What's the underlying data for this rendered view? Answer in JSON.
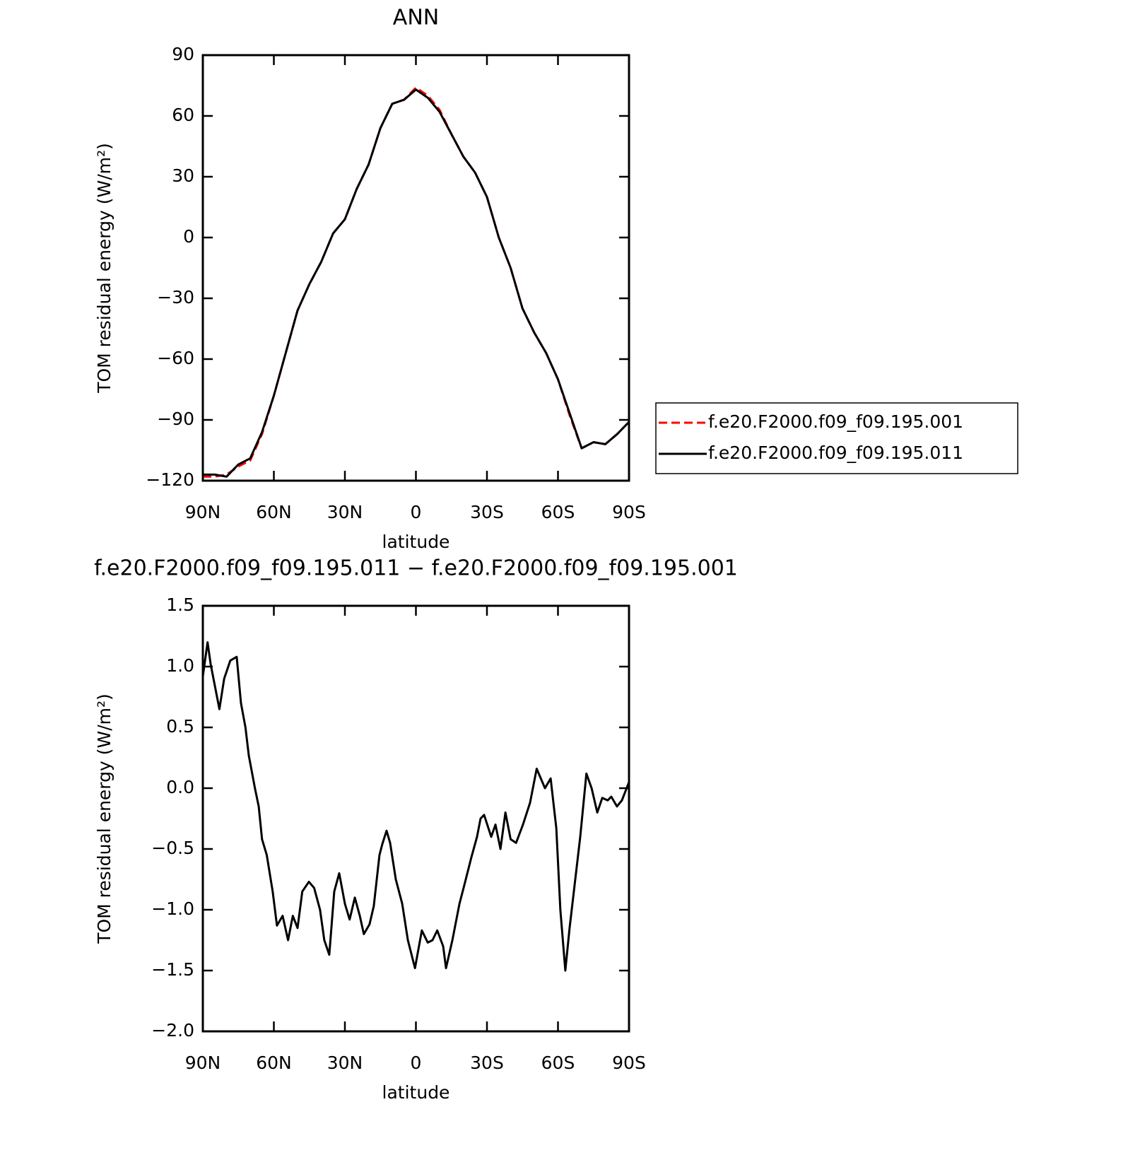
{
  "chart_data": [
    {
      "type": "line",
      "title": "ANN",
      "xlabel": "latitude",
      "ylabel": "TOM residual energy (W/m²)",
      "x": [
        90,
        85,
        80,
        75,
        70,
        65,
        60,
        55,
        50,
        45,
        40,
        35,
        30,
        25,
        20,
        15,
        10,
        5,
        0,
        -5,
        -10,
        -15,
        -20,
        -25,
        -30,
        -35,
        -40,
        -45,
        -50,
        -55,
        -60,
        -65,
        -70,
        -75,
        -80,
        -85,
        -90
      ],
      "series": [
        {
          "name": "f.e20.F2000.f09_f09.195.001",
          "color": "#ff0000",
          "linestyle": "dashed",
          "values": [
            -118,
            -118,
            -117,
            -113,
            -110,
            -97,
            -78,
            -57,
            -36,
            -23,
            -12,
            2,
            9,
            24,
            36,
            54,
            66,
            68,
            74,
            70,
            63,
            51,
            40,
            32,
            20,
            0,
            -15,
            -35,
            -47,
            -57,
            -70,
            -88,
            -104,
            -101,
            -102,
            -97,
            -91
          ]
        },
        {
          "name": "f.e20.F2000.f09_f09.195.011",
          "color": "#000000",
          "linestyle": "solid",
          "values": [
            -117,
            -117,
            -118,
            -112,
            -109,
            -96,
            -78,
            -57,
            -36,
            -23,
            -12,
            2,
            9,
            24,
            36,
            54,
            66,
            68,
            73,
            69,
            62,
            51,
            40,
            32,
            20,
            0,
            -15,
            -35,
            -47,
            -57,
            -70,
            -87,
            -104,
            -101,
            -102,
            -97,
            -91
          ]
        }
      ],
      "xlim": [
        90,
        -90
      ],
      "xticks": [
        {
          "value": 90,
          "label": "90N"
        },
        {
          "value": 60,
          "label": "60N"
        },
        {
          "value": 30,
          "label": "30N"
        },
        0,
        {
          "value": -30,
          "label": "30S"
        },
        {
          "value": -60,
          "label": "60S"
        },
        {
          "value": -90,
          "label": "90S"
        }
      ],
      "ylim": [
        -120,
        90
      ],
      "yticks": [
        90,
        60,
        30,
        0,
        {
          "value": -30,
          "label": "−30"
        },
        {
          "value": -60,
          "label": "−60"
        },
        {
          "value": -90,
          "label": "−90"
        },
        {
          "value": -120,
          "label": "−120"
        }
      ],
      "legend": "right"
    },
    {
      "type": "line",
      "title": "f.e20.F2000.f09_f09.195.011 − f.e20.F2000.f09_f09.195.001",
      "xlabel": "latitude",
      "ylabel": "TOM residual energy (W/m²)",
      "x": [
        90,
        88,
        86.7,
        85,
        83,
        81,
        78.4,
        75.7,
        73.9,
        72,
        70.6,
        68,
        66.4,
        65,
        63,
        60.5,
        58.7,
        56.3,
        54,
        52,
        50,
        48,
        45.2,
        43,
        40.5,
        38.7,
        36.6,
        34.5,
        32.4,
        30,
        28,
        25.8,
        23.7,
        22,
        19.6,
        17.8,
        15.4,
        14.2,
        12.4,
        10.9,
        8.5,
        5.8,
        3.4,
        0.4,
        -2.5,
        -5,
        -7,
        -9,
        -11.5,
        -12.7,
        -15.4,
        -18.4,
        -20.4,
        -23.4,
        -25.8,
        -27.3,
        -28.8,
        -31.8,
        -33.6,
        -35.7,
        -37.8,
        -40,
        -42.3,
        -45.2,
        -48.2,
        -51,
        -54.5,
        -56.9,
        -59.3,
        -61,
        -63.1,
        -64.9,
        -67,
        -69.4,
        -72,
        -74.2,
        -76.6,
        -78.7,
        -81,
        -82.5,
        -84.9,
        -87,
        -90
      ],
      "series": [
        {
          "color": "#000000",
          "linestyle": "solid",
          "values": [
            0.92,
            1.2,
            1.02,
            0.85,
            0.65,
            0.9,
            1.05,
            1.08,
            0.7,
            0.5,
            0.27,
            0.0,
            -0.15,
            -0.42,
            -0.55,
            -0.85,
            -1.13,
            -1.05,
            -1.25,
            -1.05,
            -1.15,
            -0.85,
            -0.77,
            -0.82,
            -1.0,
            -1.25,
            -1.37,
            -0.85,
            -0.7,
            -0.95,
            -1.08,
            -0.9,
            -1.05,
            -1.2,
            -1.12,
            -0.97,
            -0.55,
            -0.46,
            -0.35,
            -0.45,
            -0.75,
            -0.95,
            -1.25,
            -1.48,
            -1.17,
            -1.27,
            -1.25,
            -1.17,
            -1.3,
            -1.48,
            -1.25,
            -0.95,
            -0.8,
            -0.57,
            -0.4,
            -0.25,
            -0.22,
            -0.4,
            -0.3,
            -0.5,
            -0.2,
            -0.42,
            -0.45,
            -0.3,
            -0.12,
            0.16,
            0.0,
            0.08,
            -0.33,
            -1.0,
            -1.5,
            -1.15,
            -0.8,
            -0.4,
            0.12,
            0.0,
            -0.2,
            -0.08,
            -0.1,
            -0.07,
            -0.15,
            -0.1,
            0.05
          ]
        }
      ],
      "xlim": [
        90,
        -90
      ],
      "xticks": [
        {
          "value": 90,
          "label": "90N"
        },
        {
          "value": 60,
          "label": "60N"
        },
        {
          "value": 30,
          "label": "30N"
        },
        0,
        {
          "value": -30,
          "label": "30S"
        },
        {
          "value": -60,
          "label": "60S"
        },
        {
          "value": -90,
          "label": "90S"
        }
      ],
      "ylim": [
        -2.0,
        1.5
      ],
      "yticks": [
        1.5,
        {
          "value": 1.0,
          "label": "1.0"
        },
        0.5,
        {
          "value": 0.0,
          "label": "0.0"
        },
        {
          "value": -0.5,
          "label": "−0.5"
        },
        {
          "value": -1.0,
          "label": "−1.0"
        },
        {
          "value": -1.5,
          "label": "−1.5"
        },
        {
          "value": -2.0,
          "label": "−2.0"
        }
      ]
    }
  ]
}
